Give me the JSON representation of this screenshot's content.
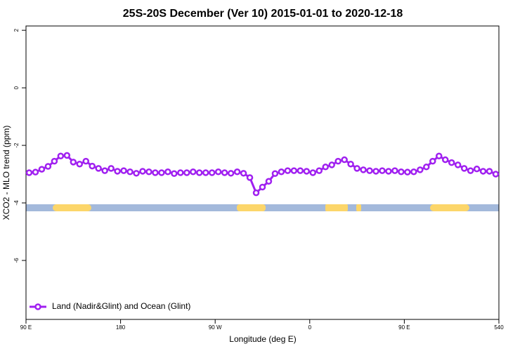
{
  "chart_data": {
    "type": "line",
    "title": "25S-20S December (Ver 10)   2015-01-01 to 2020-12-18",
    "x_label": "Longitude (deg E)",
    "y_label": "XCO2 - MLO trend (ppm)",
    "legend": "bottom-left",
    "xlim": [
      90,
      540
    ],
    "ylim": [
      -8.05,
      2.15
    ],
    "xticks": [
      {
        "value": 90,
        "label": "90 E"
      },
      180,
      {
        "value": 270,
        "label": "90 W"
      },
      {
        "value": 360,
        "label": "0"
      },
      {
        "value": 450,
        "label": "90 E"
      },
      540
    ],
    "yticks": [
      2,
      0,
      -2,
      -4,
      -6
    ],
    "x": [
      93,
      99,
      105,
      111,
      117,
      123,
      129,
      135,
      141,
      147,
      153,
      159,
      165,
      171,
      177,
      183,
      189,
      195,
      201,
      207,
      213,
      219,
      225,
      231,
      237,
      243,
      249,
      255,
      261,
      267,
      273,
      279,
      285,
      291,
      297,
      303,
      309,
      315,
      321,
      327,
      333,
      339,
      345,
      351,
      357,
      363,
      369,
      375,
      381,
      387,
      393,
      399,
      405,
      411,
      417,
      423,
      429,
      435,
      441,
      447,
      453,
      459,
      465,
      471,
      477,
      483,
      489,
      495,
      501,
      507,
      513,
      519,
      525,
      531,
      537
    ],
    "series": [
      {
        "name": "Land (Nadir&Glint) and Ocean (Glint)",
        "color": "#a020f0",
        "values": [
          -2.95,
          -2.93,
          -2.83,
          -2.73,
          -2.55,
          -2.37,
          -2.35,
          -2.58,
          -2.65,
          -2.55,
          -2.72,
          -2.8,
          -2.88,
          -2.8,
          -2.9,
          -2.88,
          -2.92,
          -2.97,
          -2.9,
          -2.92,
          -2.95,
          -2.95,
          -2.92,
          -2.98,
          -2.95,
          -2.95,
          -2.92,
          -2.95,
          -2.95,
          -2.95,
          -2.92,
          -2.95,
          -2.97,
          -2.92,
          -2.97,
          -3.12,
          -3.65,
          -3.45,
          -3.25,
          -2.98,
          -2.92,
          -2.88,
          -2.88,
          -2.88,
          -2.9,
          -2.95,
          -2.88,
          -2.75,
          -2.68,
          -2.55,
          -2.5,
          -2.65,
          -2.8,
          -2.85,
          -2.88,
          -2.9,
          -2.88,
          -2.9,
          -2.88,
          -2.92,
          -2.93,
          -2.92,
          -2.85,
          -2.75,
          -2.55,
          -2.37,
          -2.5,
          -2.6,
          -2.68,
          -2.8,
          -2.88,
          -2.82,
          -2.9,
          -2.9,
          -3.0
        ]
      }
    ]
  }
}
